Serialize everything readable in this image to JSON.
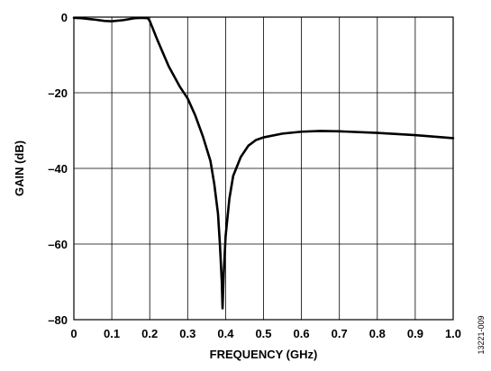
{
  "chart_data": {
    "type": "line",
    "xlabel": "FREQUENCY (GHz)",
    "ylabel": "GAIN (dB)",
    "xlim": [
      0,
      1.0
    ],
    "ylim": [
      -80,
      0
    ],
    "x_ticks": [
      0,
      0.1,
      0.2,
      0.3,
      0.4,
      0.5,
      0.6,
      0.7,
      0.8,
      0.9,
      1.0
    ],
    "x_tick_labels": [
      "0",
      "0.1",
      "0.2",
      "0.3",
      "0.4",
      "0.5",
      "0.6",
      "0.7",
      "0.8",
      "0.9",
      "1.0"
    ],
    "y_ticks": [
      0,
      -20,
      -40,
      -60,
      -80
    ],
    "y_tick_labels": [
      "0",
      "–20",
      "–40",
      "–60",
      "–80"
    ],
    "grid": true,
    "series": [
      {
        "color": "#000000",
        "x": [
          0,
          0.02,
          0.05,
          0.08,
          0.1,
          0.13,
          0.16,
          0.18,
          0.195,
          0.2,
          0.22,
          0.25,
          0.28,
          0.3,
          0.32,
          0.34,
          0.36,
          0.37,
          0.38,
          0.385,
          0.39,
          0.392,
          0.395,
          0.4,
          0.41,
          0.42,
          0.44,
          0.46,
          0.48,
          0.5,
          0.55,
          0.6,
          0.65,
          0.7,
          0.8,
          0.9,
          1.0
        ],
        "y": [
          -0.2,
          -0.3,
          -0.6,
          -1.0,
          -1.1,
          -0.8,
          -0.3,
          -0.2,
          -0.3,
          -1.0,
          -6.0,
          -13.0,
          -18.5,
          -21.5,
          -26.0,
          -31.5,
          -38.0,
          -44.0,
          -52.0,
          -60.0,
          -70.0,
          -77.0,
          -68.0,
          -58.0,
          -48.0,
          -42.0,
          -37.0,
          -34.0,
          -32.5,
          -31.8,
          -30.8,
          -30.3,
          -30.1,
          -30.2,
          -30.6,
          -31.2,
          -32.0
        ]
      }
    ]
  },
  "figure_id": "13221-009"
}
